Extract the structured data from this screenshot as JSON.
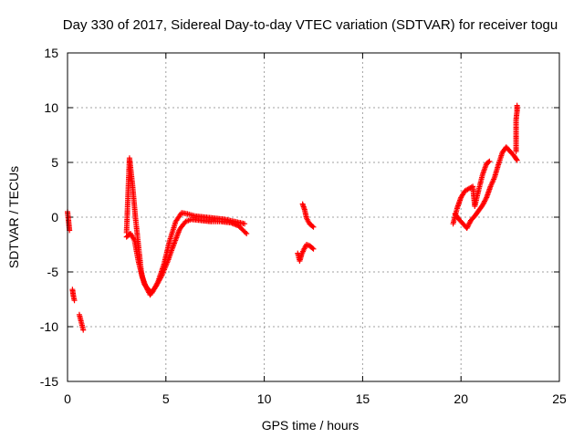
{
  "chart_data": {
    "type": "scatter",
    "title": "Day 330 of 2017, Sidereal Day-to-day VTEC variation (SDTVAR) for receiver togu",
    "xlabel": "GPS time / hours",
    "ylabel": "SDTVAR / TECUs",
    "xlim": [
      0,
      25
    ],
    "ylim": [
      -15,
      15
    ],
    "x_ticks": [
      "0",
      "5",
      "10",
      "15",
      "20",
      "25"
    ],
    "y_ticks": [
      "-15",
      "-10",
      "-5",
      "0",
      "5",
      "10",
      "15"
    ],
    "grid": true,
    "legend": "none",
    "marker": "plus",
    "color": "#ff0000",
    "series": [
      {
        "segments": [
          [
            [
              0.0,
              0.5
            ],
            [
              0.05,
              -0.3
            ],
            [
              0.1,
              -1.2
            ]
          ],
          [
            [
              0.25,
              -6.6
            ],
            [
              0.3,
              -7.2
            ],
            [
              0.35,
              -7.6
            ]
          ],
          [
            [
              0.6,
              -8.9
            ],
            [
              0.7,
              -9.6
            ],
            [
              0.8,
              -10.3
            ]
          ],
          [
            [
              3.0,
              -1.4
            ],
            [
              3.15,
              5.4
            ],
            [
              3.3,
              3.0
            ],
            [
              3.45,
              0.0
            ],
            [
              3.6,
              -2.5
            ],
            [
              3.75,
              -5.0
            ],
            [
              3.9,
              -6.1
            ],
            [
              4.1,
              -6.6
            ],
            [
              4.3,
              -6.9
            ],
            [
              4.6,
              -5.9
            ],
            [
              4.9,
              -4.3
            ],
            [
              5.2,
              -2.1
            ],
            [
              5.5,
              -0.4
            ],
            [
              5.8,
              0.4
            ],
            [
              6.1,
              0.3
            ],
            [
              6.5,
              0.1
            ],
            [
              7.0,
              0.0
            ],
            [
              7.5,
              -0.1
            ],
            [
              8.0,
              -0.2
            ],
            [
              8.5,
              -0.4
            ],
            [
              9.0,
              -0.6
            ]
          ],
          [
            [
              3.0,
              -1.8
            ],
            [
              3.2,
              -1.5
            ],
            [
              3.4,
              -2.1
            ],
            [
              3.6,
              -4.0
            ],
            [
              3.8,
              -5.5
            ],
            [
              4.0,
              -6.4
            ],
            [
              4.2,
              -7.1
            ],
            [
              4.5,
              -6.3
            ],
            [
              4.8,
              -5.3
            ],
            [
              5.1,
              -4.0
            ],
            [
              5.4,
              -2.5
            ],
            [
              5.7,
              -1.1
            ],
            [
              6.0,
              -0.4
            ],
            [
              6.3,
              -0.2
            ],
            [
              6.8,
              -0.3
            ],
            [
              7.3,
              -0.4
            ],
            [
              7.8,
              -0.4
            ],
            [
              8.3,
              -0.5
            ],
            [
              8.7,
              -0.8
            ],
            [
              9.1,
              -1.5
            ]
          ],
          [
            [
              11.7,
              -3.3
            ],
            [
              11.8,
              -4.0
            ],
            [
              11.9,
              -3.4
            ],
            [
              12.0,
              -3.0
            ],
            [
              12.15,
              -2.5
            ],
            [
              12.3,
              -2.6
            ],
            [
              12.5,
              -2.9
            ]
          ],
          [
            [
              11.95,
              1.2
            ],
            [
              12.05,
              0.7
            ],
            [
              12.15,
              -0.1
            ],
            [
              12.3,
              -0.6
            ],
            [
              12.5,
              -0.9
            ]
          ],
          [
            [
              19.6,
              -0.6
            ],
            [
              19.8,
              0.8
            ],
            [
              20.0,
              1.8
            ],
            [
              20.2,
              2.4
            ],
            [
              20.4,
              2.6
            ],
            [
              20.6,
              2.8
            ],
            [
              20.7,
              1.0
            ],
            [
              20.9,
              2.5
            ],
            [
              21.1,
              3.9
            ],
            [
              21.3,
              4.9
            ],
            [
              21.45,
              5.1
            ]
          ],
          [
            [
              19.7,
              0.3
            ],
            [
              19.9,
              -0.2
            ],
            [
              20.1,
              -0.6
            ],
            [
              20.3,
              -1.0
            ],
            [
              20.5,
              -0.3
            ],
            [
              20.7,
              0.1
            ],
            [
              20.9,
              0.6
            ],
            [
              21.1,
              1.1
            ],
            [
              21.3,
              1.8
            ],
            [
              21.5,
              2.8
            ],
            [
              21.7,
              3.6
            ],
            [
              21.9,
              4.8
            ],
            [
              22.1,
              5.9
            ],
            [
              22.3,
              6.4
            ],
            [
              22.5,
              6.0
            ],
            [
              22.7,
              5.6
            ],
            [
              22.85,
              5.2
            ]
          ],
          [
            [
              22.8,
              6.0
            ],
            [
              22.8,
              7.5
            ],
            [
              22.8,
              8.9
            ],
            [
              22.85,
              9.7
            ],
            [
              22.85,
              10.2
            ]
          ]
        ]
      }
    ]
  }
}
